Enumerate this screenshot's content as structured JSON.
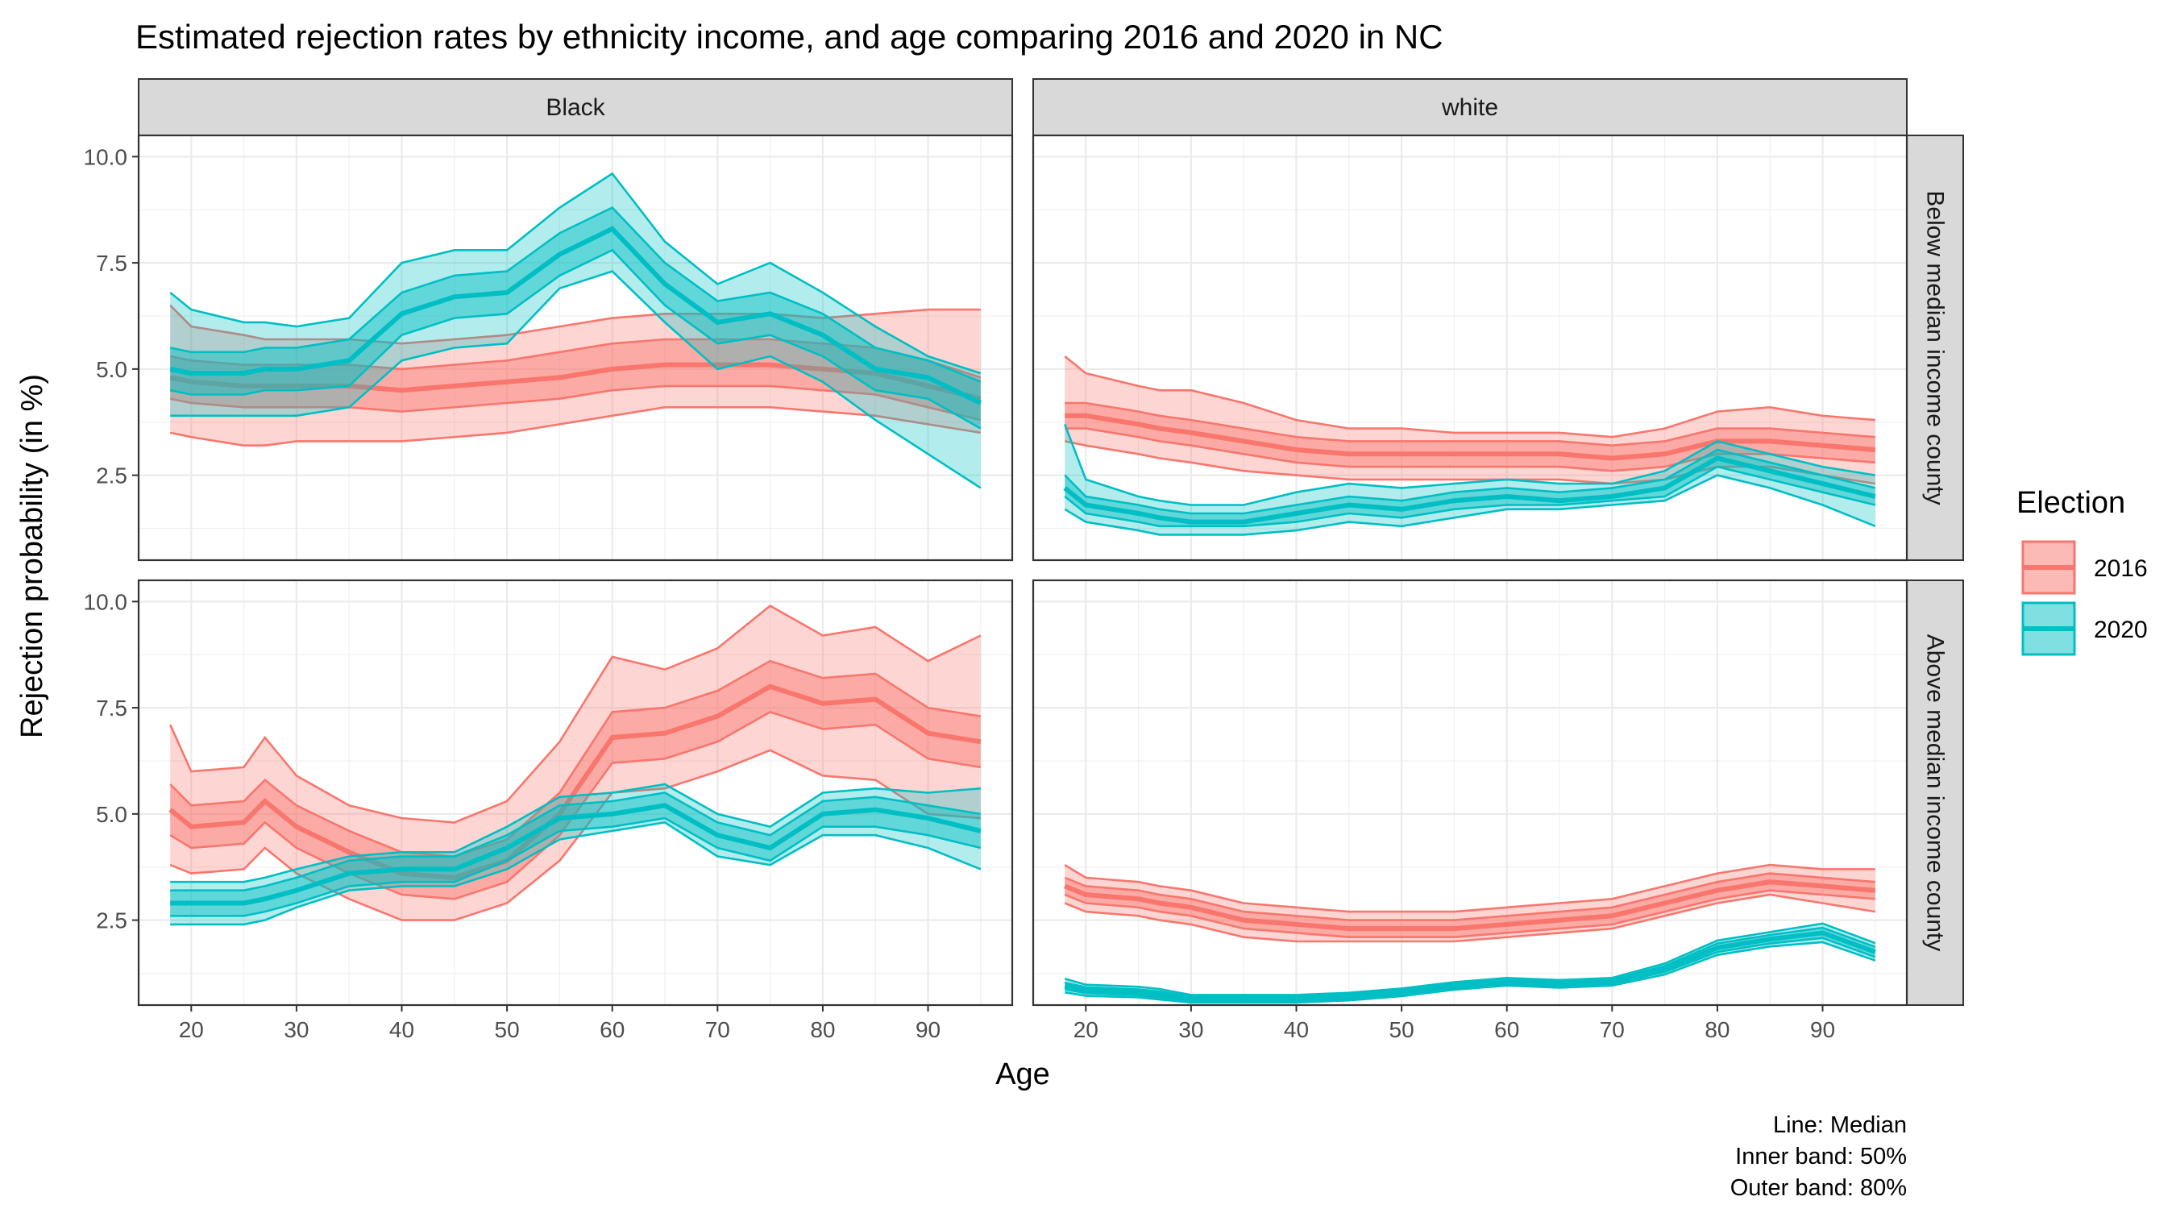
{
  "chart_data": {
    "type": "area",
    "title": "Estimated rejection rates by ethnicity income, and age comparing 2016 and 2020 in NC",
    "xlabel": "Age",
    "ylabel": "Rejection probability (in %)",
    "xlim": [
      15,
      98
    ],
    "ylim": [
      0.5,
      10.5
    ],
    "x_ticks": [
      20,
      30,
      40,
      50,
      60,
      70,
      80,
      90
    ],
    "y_ticks": [
      2.5,
      5.0,
      7.5,
      10.0
    ],
    "y_tick_labels": [
      "2.5",
      "5.0",
      "7.5",
      "10.0"
    ],
    "grid": true,
    "legend_placement": "right",
    "legend": {
      "title": "Election",
      "entries": [
        {
          "label": "2016",
          "color": "#F8766D"
        },
        {
          "label": "2020",
          "color": "#00BFC4"
        }
      ]
    },
    "facet_columns": [
      "Black",
      "white"
    ],
    "facet_rows": [
      "Below median income county",
      "Above median income county"
    ],
    "caption": [
      "Line: Median",
      "Inner band: 50%",
      "Outer band: 80%"
    ],
    "x": [
      18,
      20,
      25,
      27,
      30,
      35,
      40,
      45,
      50,
      55,
      60,
      65,
      70,
      75,
      80,
      85,
      90,
      95
    ],
    "panels": [
      {
        "column": "Black",
        "row": "Below median income county",
        "series": [
          {
            "name": "2016",
            "median": [
              4.8,
              4.7,
              4.6,
              4.6,
              4.6,
              4.6,
              4.5,
              4.6,
              4.7,
              4.8,
              5.0,
              5.1,
              5.1,
              5.1,
              5.0,
              4.9,
              4.6,
              4.3
            ],
            "q25": [
              4.3,
              4.2,
              4.1,
              4.1,
              4.1,
              4.1,
              4.0,
              4.1,
              4.2,
              4.3,
              4.5,
              4.6,
              4.6,
              4.6,
              4.5,
              4.4,
              4.1,
              3.8
            ],
            "q75": [
              5.3,
              5.2,
              5.1,
              5.1,
              5.1,
              5.1,
              5.0,
              5.1,
              5.2,
              5.4,
              5.6,
              5.7,
              5.7,
              5.7,
              5.6,
              5.5,
              5.2,
              4.8
            ],
            "q10": [
              3.5,
              3.4,
              3.2,
              3.2,
              3.3,
              3.3,
              3.3,
              3.4,
              3.5,
              3.7,
              3.9,
              4.1,
              4.1,
              4.1,
              4.0,
              3.9,
              3.7,
              3.5
            ],
            "q90": [
              6.5,
              6.0,
              5.8,
              5.7,
              5.7,
              5.7,
              5.6,
              5.7,
              5.8,
              6.0,
              6.2,
              6.3,
              6.3,
              6.3,
              6.2,
              6.3,
              6.4,
              6.4
            ]
          },
          {
            "name": "2020",
            "median": [
              5.0,
              4.9,
              4.9,
              5.0,
              5.0,
              5.2,
              6.3,
              6.7,
              6.8,
              7.7,
              8.3,
              7.0,
              6.1,
              6.3,
              5.8,
              5.0,
              4.8,
              4.2
            ],
            "q25": [
              4.5,
              4.4,
              4.4,
              4.5,
              4.5,
              4.6,
              5.8,
              6.2,
              6.3,
              7.2,
              7.8,
              6.5,
              5.6,
              5.8,
              5.3,
              4.5,
              4.3,
              3.6
            ],
            "q75": [
              5.5,
              5.4,
              5.4,
              5.5,
              5.5,
              5.7,
              6.8,
              7.2,
              7.3,
              8.2,
              8.8,
              7.5,
              6.6,
              6.8,
              6.3,
              5.5,
              5.2,
              4.7
            ],
            "q10": [
              3.9,
              3.9,
              3.9,
              3.9,
              3.9,
              4.1,
              5.2,
              5.5,
              5.6,
              6.9,
              7.3,
              6.1,
              5.0,
              5.3,
              4.7,
              3.8,
              3.0,
              2.2
            ],
            "q90": [
              6.8,
              6.4,
              6.1,
              6.1,
              6.0,
              6.2,
              7.5,
              7.8,
              7.8,
              8.8,
              9.6,
              8.0,
              7.0,
              7.5,
              6.8,
              6.0,
              5.3,
              4.9
            ]
          }
        ]
      },
      {
        "column": "white",
        "row": "Below median income county",
        "series": [
          {
            "name": "2016",
            "median": [
              3.9,
              3.9,
              3.7,
              3.6,
              3.5,
              3.3,
              3.1,
              3.0,
              3.0,
              3.0,
              3.0,
              3.0,
              2.9,
              3.0,
              3.3,
              3.3,
              3.2,
              3.1
            ],
            "q25": [
              3.6,
              3.6,
              3.4,
              3.3,
              3.2,
              3.0,
              2.8,
              2.7,
              2.7,
              2.7,
              2.7,
              2.7,
              2.6,
              2.7,
              3.0,
              3.0,
              2.9,
              2.8
            ],
            "q75": [
              4.2,
              4.2,
              4.0,
              3.9,
              3.8,
              3.6,
              3.4,
              3.3,
              3.3,
              3.3,
              3.3,
              3.3,
              3.2,
              3.3,
              3.6,
              3.6,
              3.5,
              3.4
            ],
            "q10": [
              3.3,
              3.2,
              3.0,
              2.9,
              2.8,
              2.6,
              2.5,
              2.4,
              2.4,
              2.4,
              2.4,
              2.4,
              2.3,
              2.4,
              2.7,
              2.7,
              2.5,
              2.3
            ],
            "q90": [
              5.3,
              4.9,
              4.6,
              4.5,
              4.5,
              4.2,
              3.8,
              3.6,
              3.6,
              3.5,
              3.5,
              3.5,
              3.4,
              3.6,
              4.0,
              4.1,
              3.9,
              3.8
            ]
          },
          {
            "name": "2020",
            "median": [
              2.2,
              1.8,
              1.6,
              1.5,
              1.4,
              1.4,
              1.6,
              1.8,
              1.7,
              1.9,
              2.0,
              1.9,
              2.0,
              2.2,
              2.9,
              2.6,
              2.3,
              2.0
            ],
            "q25": [
              2.0,
              1.6,
              1.4,
              1.3,
              1.3,
              1.3,
              1.4,
              1.6,
              1.5,
              1.7,
              1.8,
              1.8,
              1.9,
              2.0,
              2.7,
              2.4,
              2.1,
              1.8
            ],
            "q75": [
              2.5,
              2.0,
              1.8,
              1.7,
              1.6,
              1.6,
              1.8,
              2.0,
              1.9,
              2.1,
              2.2,
              2.1,
              2.2,
              2.4,
              3.1,
              2.8,
              2.5,
              2.2
            ],
            "q10": [
              1.7,
              1.4,
              1.2,
              1.1,
              1.1,
              1.1,
              1.2,
              1.4,
              1.3,
              1.5,
              1.7,
              1.7,
              1.8,
              1.9,
              2.5,
              2.2,
              1.8,
              1.3
            ],
            "q90": [
              3.7,
              2.4,
              2.0,
              1.9,
              1.8,
              1.8,
              2.1,
              2.3,
              2.2,
              2.3,
              2.4,
              2.3,
              2.3,
              2.6,
              3.3,
              3.0,
              2.7,
              2.5
            ]
          }
        ]
      },
      {
        "column": "Black",
        "row": "Above median income county",
        "series": [
          {
            "name": "2016",
            "median": [
              5.1,
              4.7,
              4.8,
              5.3,
              4.7,
              4.1,
              3.6,
              3.5,
              3.9,
              5.0,
              6.8,
              6.9,
              7.3,
              8.0,
              7.6,
              7.7,
              6.9,
              6.7
            ],
            "q25": [
              4.5,
              4.2,
              4.3,
              4.8,
              4.2,
              3.6,
              3.1,
              3.0,
              3.4,
              4.5,
              6.2,
              6.3,
              6.7,
              7.4,
              7.0,
              7.1,
              6.3,
              6.1
            ],
            "q75": [
              5.7,
              5.2,
              5.3,
              5.8,
              5.2,
              4.6,
              4.1,
              4.0,
              4.4,
              5.5,
              7.4,
              7.5,
              7.9,
              8.6,
              8.2,
              8.3,
              7.5,
              7.3
            ],
            "q10": [
              3.8,
              3.6,
              3.7,
              4.2,
              3.6,
              3.0,
              2.5,
              2.5,
              2.9,
              3.9,
              5.5,
              5.6,
              6.0,
              6.5,
              5.9,
              5.8,
              5.0,
              4.9
            ],
            "q90": [
              7.1,
              6.0,
              6.1,
              6.8,
              5.9,
              5.2,
              4.9,
              4.8,
              5.3,
              6.7,
              8.7,
              8.4,
              8.9,
              9.9,
              9.2,
              9.4,
              8.6,
              9.2
            ]
          },
          {
            "name": "2020",
            "median": [
              2.9,
              2.9,
              2.9,
              3.0,
              3.2,
              3.6,
              3.7,
              3.7,
              4.2,
              4.9,
              5.0,
              5.2,
              4.5,
              4.2,
              5.0,
              5.1,
              4.9,
              4.6
            ],
            "q25": [
              2.6,
              2.6,
              2.6,
              2.7,
              2.9,
              3.3,
              3.4,
              3.4,
              3.9,
              4.6,
              4.7,
              4.9,
              4.2,
              3.9,
              4.7,
              4.7,
              4.5,
              4.2
            ],
            "q75": [
              3.2,
              3.2,
              3.2,
              3.3,
              3.5,
              3.9,
              4.0,
              4.0,
              4.5,
              5.2,
              5.3,
              5.5,
              4.8,
              4.5,
              5.3,
              5.4,
              5.2,
              5.0
            ],
            "q10": [
              2.4,
              2.4,
              2.4,
              2.5,
              2.8,
              3.2,
              3.3,
              3.3,
              3.7,
              4.4,
              4.6,
              4.8,
              4.0,
              3.8,
              4.5,
              4.5,
              4.2,
              3.7
            ],
            "q90": [
              3.4,
              3.4,
              3.4,
              3.5,
              3.7,
              4.0,
              4.1,
              4.1,
              4.7,
              5.4,
              5.5,
              5.7,
              5.0,
              4.7,
              5.5,
              5.6,
              5.5,
              5.6
            ]
          }
        ]
      },
      {
        "column": "white",
        "row": "Above median income county",
        "series": [
          {
            "name": "2016",
            "median": [
              3.3,
              3.1,
              3.0,
              2.9,
              2.8,
              2.5,
              2.4,
              2.3,
              2.3,
              2.3,
              2.4,
              2.5,
              2.6,
              2.9,
              3.2,
              3.4,
              3.3,
              3.2
            ],
            "q25": [
              3.1,
              2.9,
              2.8,
              2.7,
              2.6,
              2.3,
              2.2,
              2.1,
              2.1,
              2.1,
              2.2,
              2.3,
              2.4,
              2.7,
              3.0,
              3.2,
              3.1,
              3.0
            ],
            "q75": [
              3.5,
              3.3,
              3.2,
              3.1,
              3.0,
              2.7,
              2.6,
              2.5,
              2.5,
              2.5,
              2.6,
              2.7,
              2.8,
              3.1,
              3.4,
              3.6,
              3.5,
              3.4
            ],
            "q10": [
              2.9,
              2.7,
              2.6,
              2.5,
              2.4,
              2.1,
              2.0,
              2.0,
              2.0,
              2.0,
              2.1,
              2.2,
              2.3,
              2.6,
              2.9,
              3.1,
              2.9,
              2.7
            ],
            "q90": [
              3.8,
              3.5,
              3.4,
              3.3,
              3.2,
              2.9,
              2.8,
              2.7,
              2.7,
              2.7,
              2.8,
              2.9,
              3.0,
              3.3,
              3.6,
              3.8,
              3.7,
              3.7
            ]
          },
          {
            "name": "2020",
            "median": [
              0.95,
              0.85,
              0.8,
              0.75,
              0.65,
              0.65,
              0.65,
              0.7,
              0.8,
              0.95,
              1.05,
              1.0,
              1.05,
              1.35,
              1.85,
              2.05,
              2.2,
              1.75
            ],
            "q25": [
              0.87,
              0.78,
              0.73,
              0.68,
              0.6,
              0.6,
              0.6,
              0.65,
              0.75,
              0.9,
              1.0,
              0.95,
              1.0,
              1.28,
              1.75,
              1.95,
              2.08,
              1.63
            ],
            "q75": [
              1.03,
              0.92,
              0.87,
              0.82,
              0.7,
              0.7,
              0.7,
              0.75,
              0.85,
              1.0,
              1.1,
              1.05,
              1.1,
              1.42,
              1.95,
              2.15,
              2.32,
              1.87
            ],
            "q10": [
              0.8,
              0.72,
              0.68,
              0.63,
              0.56,
              0.56,
              0.56,
              0.61,
              0.71,
              0.86,
              0.96,
              0.91,
              0.96,
              1.22,
              1.68,
              1.88,
              1.98,
              1.55
            ],
            "q90": [
              1.12,
              0.98,
              0.93,
              0.88,
              0.74,
              0.74,
              0.74,
              0.79,
              0.89,
              1.04,
              1.14,
              1.09,
              1.14,
              1.48,
              2.02,
              2.22,
              2.42,
              1.96
            ]
          }
        ]
      }
    ]
  }
}
